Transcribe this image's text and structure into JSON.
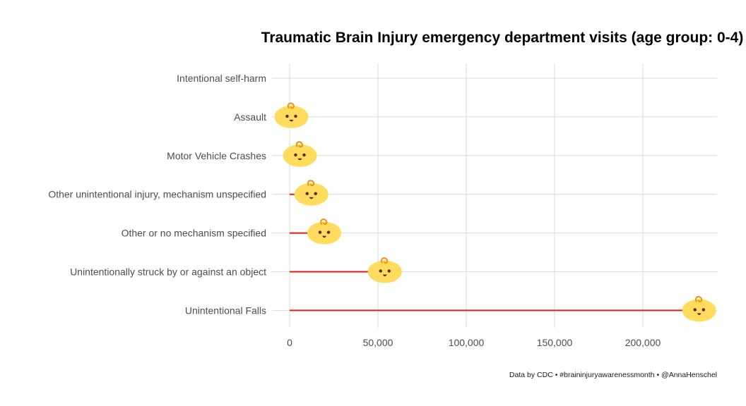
{
  "chart_data": {
    "type": "lollipop",
    "title": "Traumatic Brain Injury emergency department visits (age group: 0-4)",
    "caption": "Data by CDC • #braininjuryawarenessmonth • @AnnaHenschel",
    "xlabel": "",
    "ylabel": "",
    "xlim": [
      0,
      240000
    ],
    "x_ticks": [
      0,
      50000,
      100000,
      150000,
      200000
    ],
    "x_tick_labels": [
      "0",
      "50,000",
      "100,000",
      "150,000",
      "200,000"
    ],
    "grid": true,
    "marker_icon": "baby-face-icon",
    "categories": [
      "Intentional self-harm",
      "Assault",
      "Motor Vehicle Crashes",
      "Other unintentional injury, mechanism unspecified",
      "Other or no mechanism specified",
      "Unintentionally struck by or against an object",
      "Unintentional Falls"
    ],
    "values": [
      null,
      1000,
      5800,
      12300,
      19600,
      53900,
      231900
    ],
    "colors": {
      "segment": "#e31a1c",
      "face": "#ffdc5d",
      "hair": "#f4900c",
      "features": "#662113",
      "grid": "#d3d3d3"
    }
  }
}
